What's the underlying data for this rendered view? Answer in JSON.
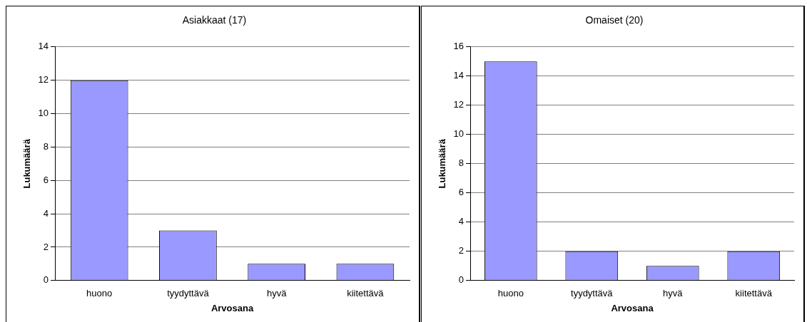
{
  "chart_data": [
    {
      "type": "bar",
      "title": "Asiakkaat (17)",
      "xlabel": "Arvosana",
      "ylabel": "Lukumäärä",
      "categories": [
        "huono",
        "tyydyttävä",
        "hyvä",
        "kiitettävä"
      ],
      "values": [
        12,
        3,
        1,
        1
      ],
      "color": "#9999ff",
      "ylim": [
        0,
        14
      ],
      "yticks": [
        0,
        2,
        4,
        6,
        8,
        10,
        12,
        14
      ],
      "grid": "y",
      "legend": false
    },
    {
      "type": "bar",
      "title": "Omaiset (20)",
      "xlabel": "Arvosana",
      "ylabel": "Lukumäärä",
      "categories": [
        "huono",
        "tyydyttävä",
        "hyvä",
        "kiitettävä"
      ],
      "values": [
        15,
        2,
        1,
        2
      ],
      "color": "#9999ff",
      "ylim": [
        0,
        16
      ],
      "yticks": [
        0,
        2,
        4,
        6,
        8,
        10,
        12,
        14,
        16
      ],
      "grid": "y",
      "legend": false
    }
  ]
}
